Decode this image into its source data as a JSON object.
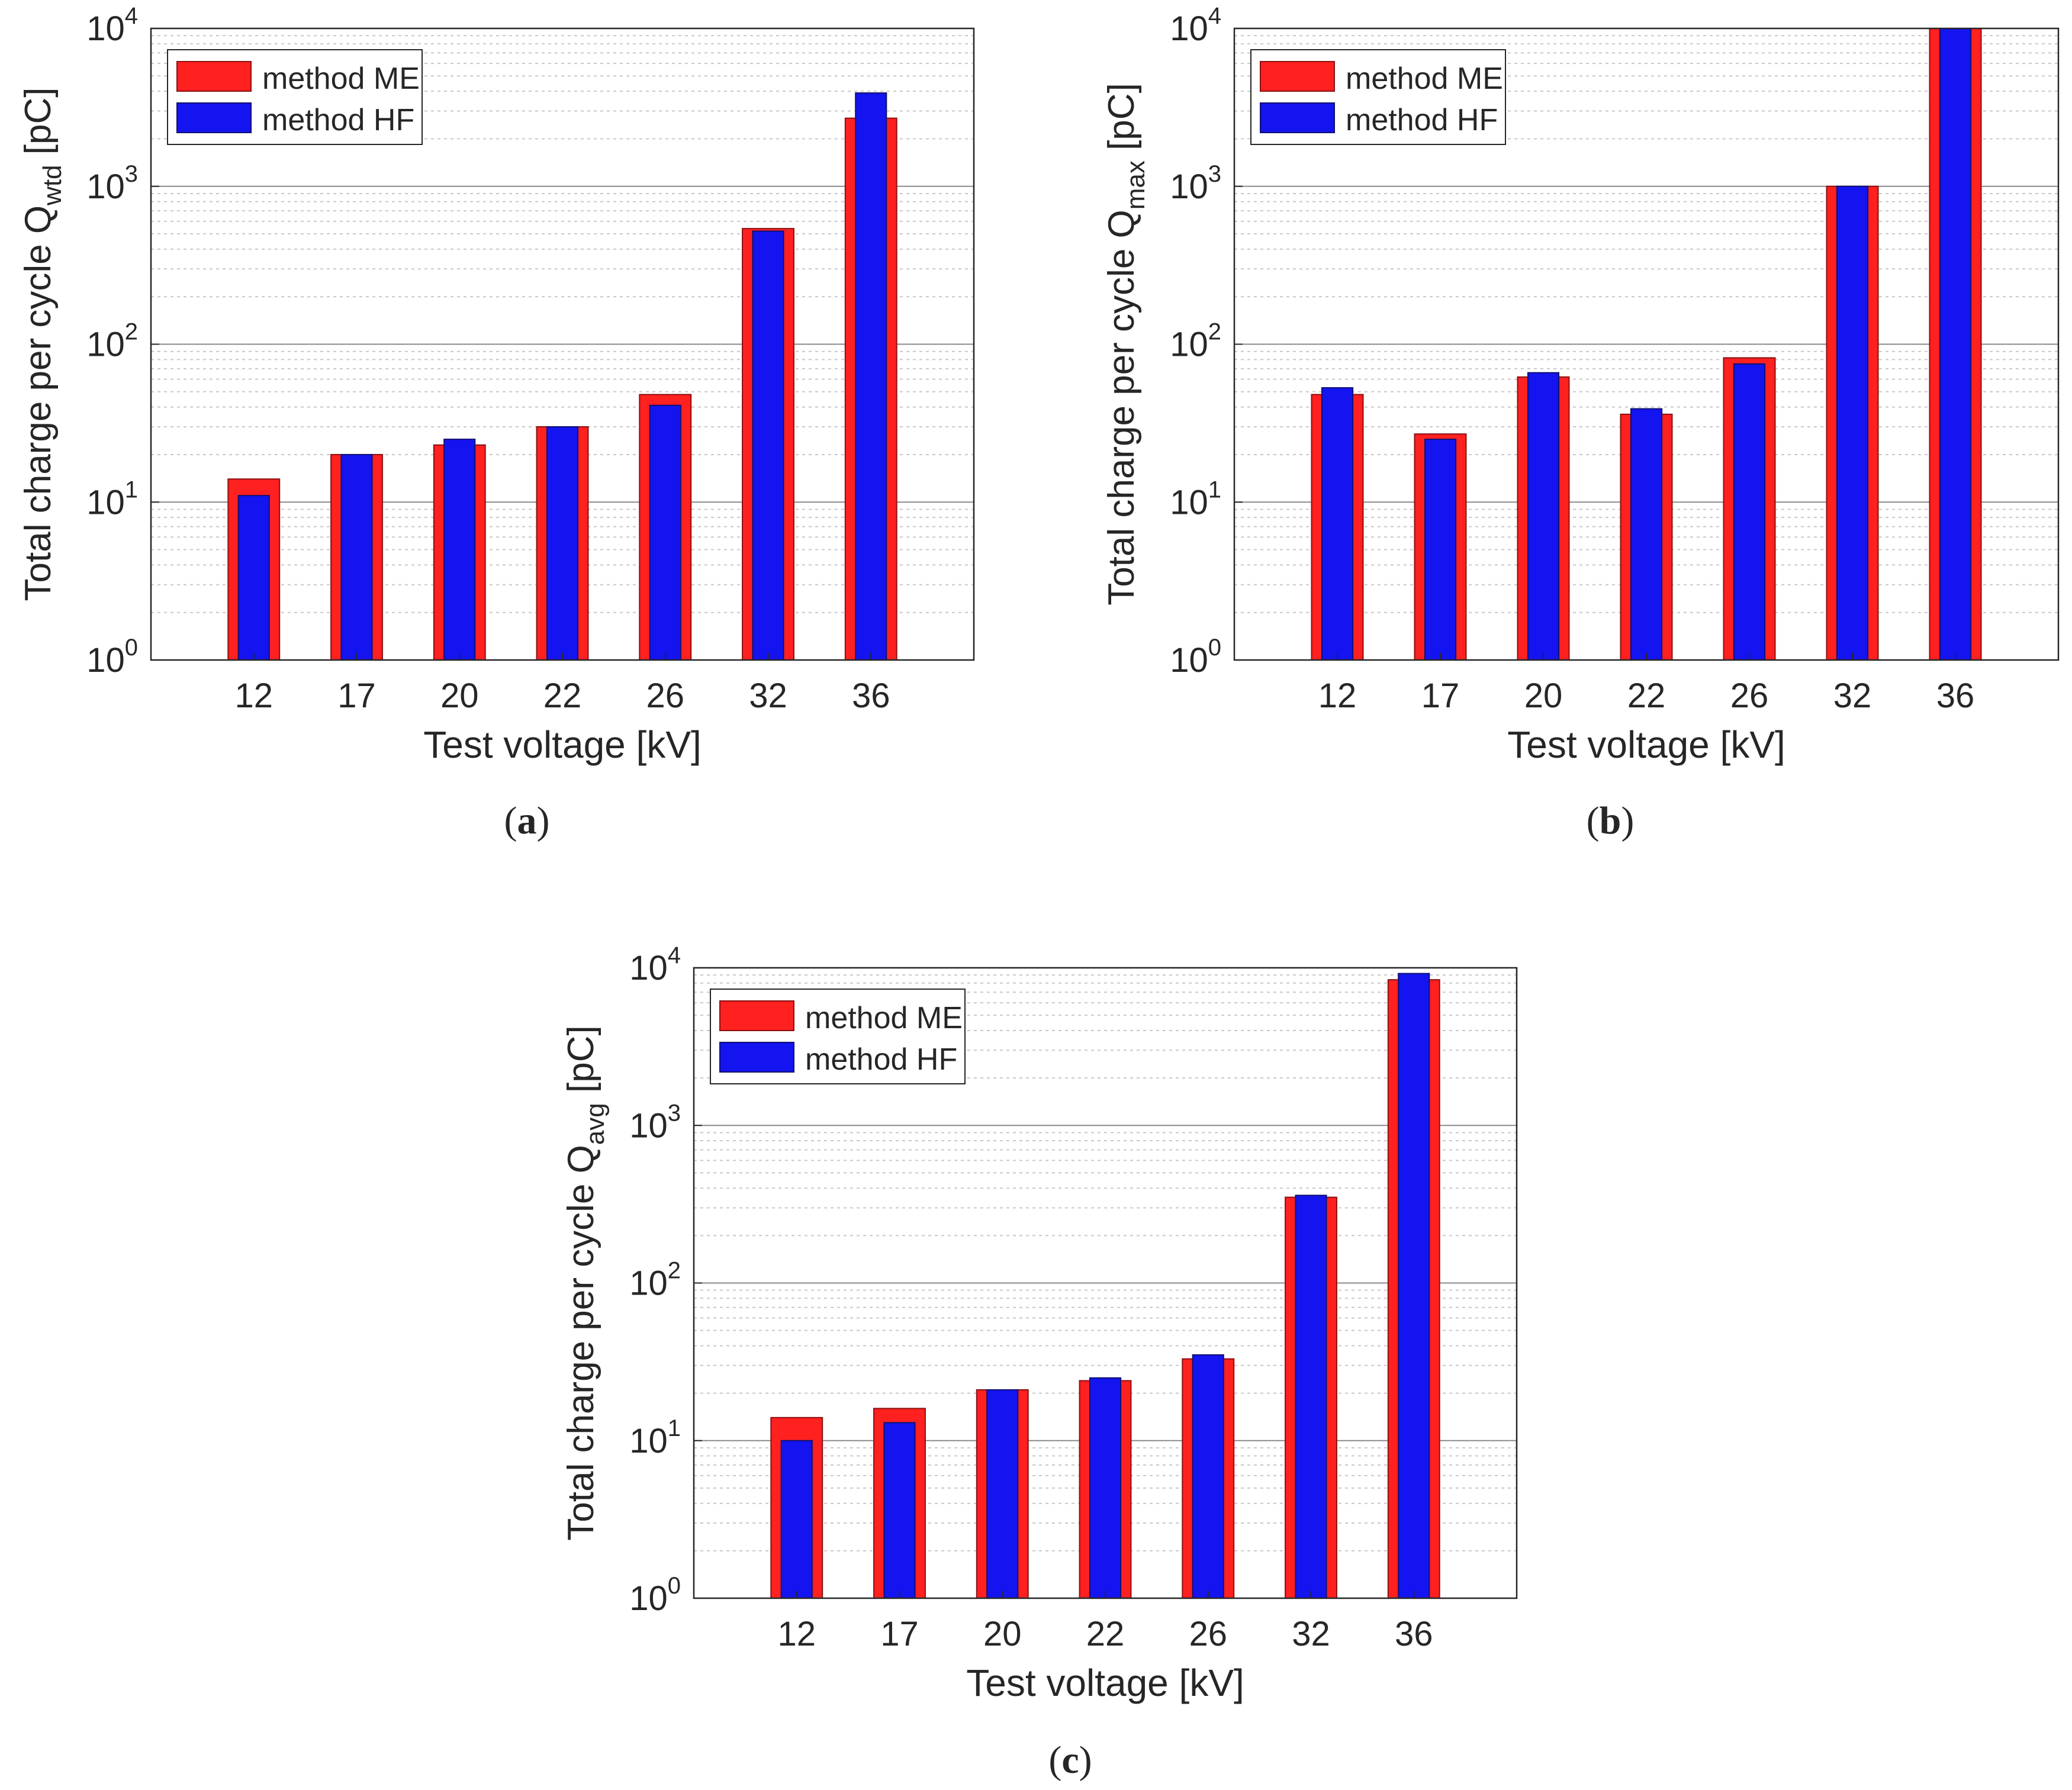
{
  "colors": {
    "me": "#ff2020",
    "hf": "#1414f0",
    "axis": "#262626",
    "grid_major": "#8a8a8a",
    "grid_minor": "#c8c8c8",
    "background": "#ffffff"
  },
  "chart_data": [
    {
      "id": "a",
      "type": "bar",
      "caption": "(a)",
      "xlabel": "Test voltage [kV]",
      "ylabel": {
        "main": "Total charge per cycle Q",
        "sub": "wtd",
        "unit": " [pC]"
      },
      "yscale": "log",
      "ylim": [
        1,
        10000
      ],
      "yticks": [
        {
          "value": 1,
          "base": "10",
          "exp": "0"
        },
        {
          "value": 10,
          "base": "10",
          "exp": "1"
        },
        {
          "value": 100,
          "base": "10",
          "exp": "2"
        },
        {
          "value": 1000,
          "base": "10",
          "exp": "3"
        },
        {
          "value": 10000,
          "base": "10",
          "exp": "4"
        }
      ],
      "grid": true,
      "legend_position": "top-left",
      "categories": [
        "12",
        "17",
        "20",
        "22",
        "26",
        "32",
        "36"
      ],
      "series": [
        {
          "name": "method ME",
          "values": [
            14,
            20,
            23,
            30,
            48,
            540,
            2700
          ]
        },
        {
          "name": "method HF",
          "values": [
            11,
            20,
            25,
            30,
            41,
            520,
            3900
          ]
        }
      ]
    },
    {
      "id": "b",
      "type": "bar",
      "caption": "(b)",
      "xlabel": "Test voltage [kV]",
      "ylabel": {
        "main": "Total charge per cycle Q",
        "sub": "max",
        "unit": " [pC]"
      },
      "yscale": "log",
      "ylim": [
        1,
        10000
      ],
      "yticks": [
        {
          "value": 1,
          "base": "10",
          "exp": "0"
        },
        {
          "value": 10,
          "base": "10",
          "exp": "1"
        },
        {
          "value": 100,
          "base": "10",
          "exp": "2"
        },
        {
          "value": 1000,
          "base": "10",
          "exp": "3"
        },
        {
          "value": 10000,
          "base": "10",
          "exp": "4"
        }
      ],
      "grid": true,
      "legend_position": "top-left",
      "categories": [
        "12",
        "17",
        "20",
        "22",
        "26",
        "32",
        "36"
      ],
      "series": [
        {
          "name": "method ME",
          "values": [
            48,
            27,
            62,
            36,
            82,
            1000,
            10000
          ]
        },
        {
          "name": "method HF",
          "values": [
            53,
            25,
            66,
            39,
            75,
            1000,
            10000
          ]
        }
      ]
    },
    {
      "id": "c",
      "type": "bar",
      "caption": "(c)",
      "xlabel": "Test voltage [kV]",
      "ylabel": {
        "main": "Total charge per cycle Q",
        "sub": "avg",
        "unit": " [pC]"
      },
      "yscale": "log",
      "ylim": [
        1,
        10000
      ],
      "yticks": [
        {
          "value": 1,
          "base": "10",
          "exp": "0"
        },
        {
          "value": 10,
          "base": "10",
          "exp": "1"
        },
        {
          "value": 100,
          "base": "10",
          "exp": "2"
        },
        {
          "value": 1000,
          "base": "10",
          "exp": "3"
        },
        {
          "value": 10000,
          "base": "10",
          "exp": "4"
        }
      ],
      "grid": true,
      "legend_position": "top-left",
      "categories": [
        "12",
        "17",
        "20",
        "22",
        "26",
        "32",
        "36"
      ],
      "series": [
        {
          "name": "method ME",
          "values": [
            14,
            16,
            21,
            24,
            33,
            350,
            8400
          ]
        },
        {
          "name": "method HF",
          "values": [
            10,
            13,
            21,
            25,
            35,
            360,
            9200
          ]
        }
      ]
    }
  ]
}
